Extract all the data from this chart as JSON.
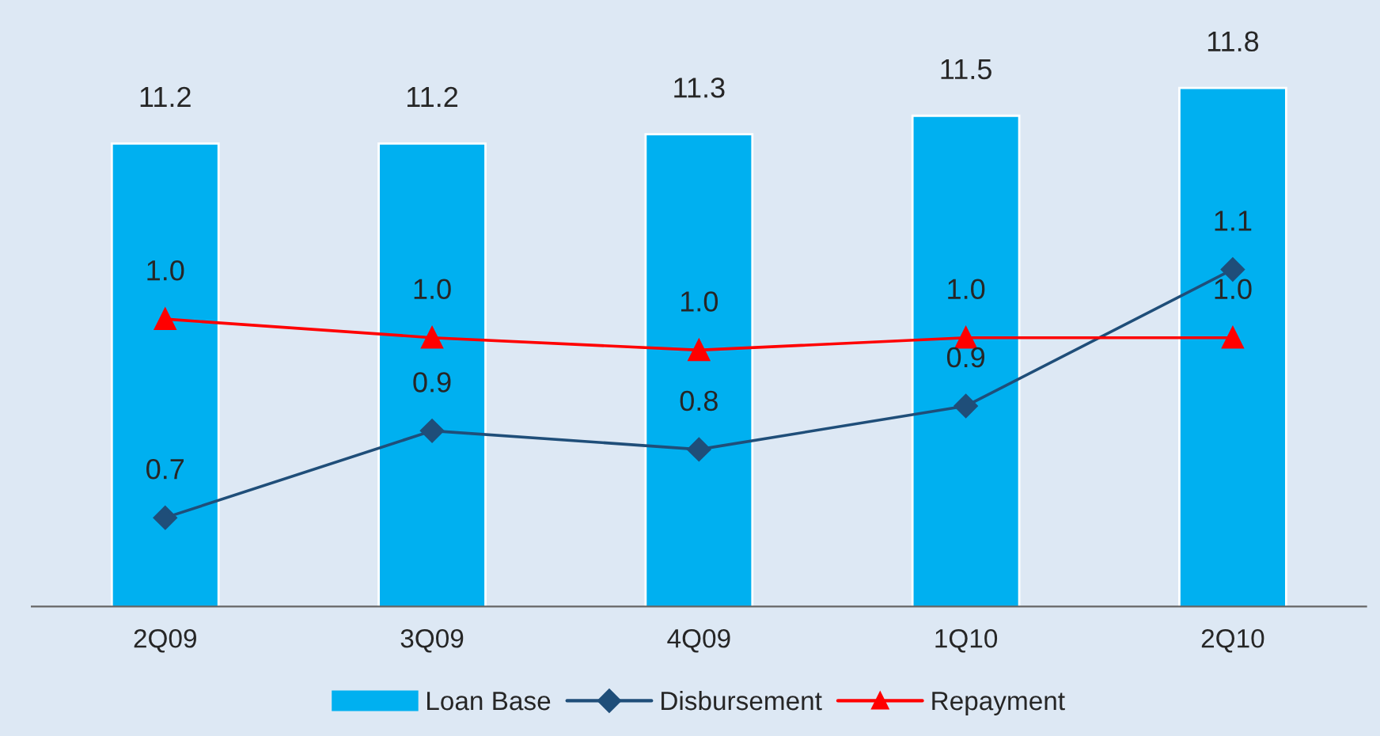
{
  "chart_data": {
    "type": "bar",
    "categories": [
      "2Q09",
      "3Q09",
      "4Q09",
      "1Q10",
      "2Q10"
    ],
    "series": [
      {
        "name": "Loan Base",
        "color": "#00b0f0",
        "values": [
          11.2,
          11.2,
          11.3,
          11.5,
          11.8
        ]
      },
      {
        "name": "Disbursement",
        "type": "line",
        "axis": "y2",
        "color": "#1f4e79",
        "marker": "diamond",
        "values": [
          0.72,
          0.86,
          0.83,
          0.9,
          1.12
        ],
        "value_labels": [
          "0.7",
          "0.9",
          "0.8",
          "0.9",
          "1.1"
        ]
      },
      {
        "name": "Repayment",
        "type": "line",
        "axis": "y2",
        "color": "#ff0000",
        "marker": "triangle",
        "values": [
          1.04,
          1.01,
          0.99,
          1.01,
          1.01
        ],
        "value_labels": [
          "1.0",
          "1.0",
          "1.0",
          "1.0",
          "1.0"
        ]
      }
    ],
    "ylim": [
      6.2,
      12.75
    ],
    "y2lim": [
      0.577,
      1.554
    ],
    "tick_labels": "x",
    "data_labels": true,
    "legend": "bottom",
    "grid": false
  }
}
